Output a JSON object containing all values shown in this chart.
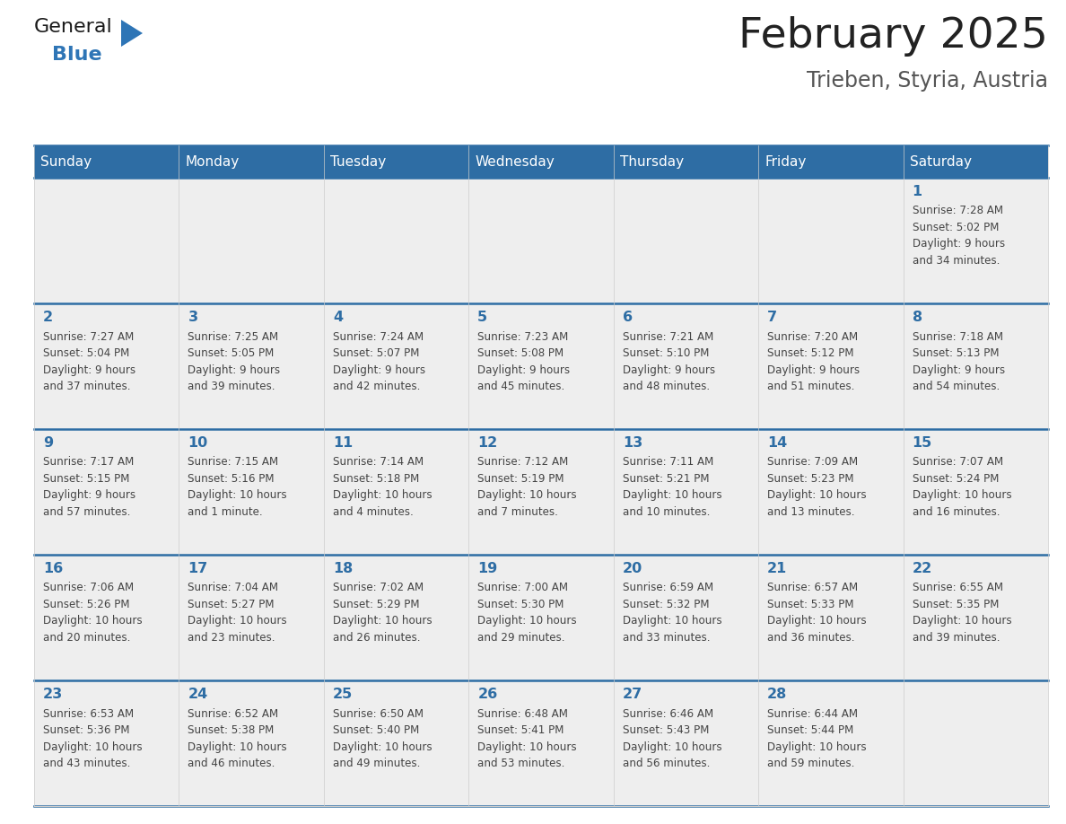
{
  "title": "February 2025",
  "subtitle": "Trieben, Styria, Austria",
  "days_of_week": [
    "Sunday",
    "Monday",
    "Tuesday",
    "Wednesday",
    "Thursday",
    "Friday",
    "Saturday"
  ],
  "header_bg": "#2e6da4",
  "header_text": "#ffffff",
  "cell_bg": "#eeeeee",
  "cell_bg_white": "#ffffff",
  "border_color": "#2e6da4",
  "day_number_color": "#2e6da4",
  "text_color": "#444444",
  "title_color": "#222222",
  "calendar_data": [
    [
      {
        "day": null,
        "info": ""
      },
      {
        "day": null,
        "info": ""
      },
      {
        "day": null,
        "info": ""
      },
      {
        "day": null,
        "info": ""
      },
      {
        "day": null,
        "info": ""
      },
      {
        "day": null,
        "info": ""
      },
      {
        "day": 1,
        "info": "Sunrise: 7:28 AM\nSunset: 5:02 PM\nDaylight: 9 hours\nand 34 minutes."
      }
    ],
    [
      {
        "day": 2,
        "info": "Sunrise: 7:27 AM\nSunset: 5:04 PM\nDaylight: 9 hours\nand 37 minutes."
      },
      {
        "day": 3,
        "info": "Sunrise: 7:25 AM\nSunset: 5:05 PM\nDaylight: 9 hours\nand 39 minutes."
      },
      {
        "day": 4,
        "info": "Sunrise: 7:24 AM\nSunset: 5:07 PM\nDaylight: 9 hours\nand 42 minutes."
      },
      {
        "day": 5,
        "info": "Sunrise: 7:23 AM\nSunset: 5:08 PM\nDaylight: 9 hours\nand 45 minutes."
      },
      {
        "day": 6,
        "info": "Sunrise: 7:21 AM\nSunset: 5:10 PM\nDaylight: 9 hours\nand 48 minutes."
      },
      {
        "day": 7,
        "info": "Sunrise: 7:20 AM\nSunset: 5:12 PM\nDaylight: 9 hours\nand 51 minutes."
      },
      {
        "day": 8,
        "info": "Sunrise: 7:18 AM\nSunset: 5:13 PM\nDaylight: 9 hours\nand 54 minutes."
      }
    ],
    [
      {
        "day": 9,
        "info": "Sunrise: 7:17 AM\nSunset: 5:15 PM\nDaylight: 9 hours\nand 57 minutes."
      },
      {
        "day": 10,
        "info": "Sunrise: 7:15 AM\nSunset: 5:16 PM\nDaylight: 10 hours\nand 1 minute."
      },
      {
        "day": 11,
        "info": "Sunrise: 7:14 AM\nSunset: 5:18 PM\nDaylight: 10 hours\nand 4 minutes."
      },
      {
        "day": 12,
        "info": "Sunrise: 7:12 AM\nSunset: 5:19 PM\nDaylight: 10 hours\nand 7 minutes."
      },
      {
        "day": 13,
        "info": "Sunrise: 7:11 AM\nSunset: 5:21 PM\nDaylight: 10 hours\nand 10 minutes."
      },
      {
        "day": 14,
        "info": "Sunrise: 7:09 AM\nSunset: 5:23 PM\nDaylight: 10 hours\nand 13 minutes."
      },
      {
        "day": 15,
        "info": "Sunrise: 7:07 AM\nSunset: 5:24 PM\nDaylight: 10 hours\nand 16 minutes."
      }
    ],
    [
      {
        "day": 16,
        "info": "Sunrise: 7:06 AM\nSunset: 5:26 PM\nDaylight: 10 hours\nand 20 minutes."
      },
      {
        "day": 17,
        "info": "Sunrise: 7:04 AM\nSunset: 5:27 PM\nDaylight: 10 hours\nand 23 minutes."
      },
      {
        "day": 18,
        "info": "Sunrise: 7:02 AM\nSunset: 5:29 PM\nDaylight: 10 hours\nand 26 minutes."
      },
      {
        "day": 19,
        "info": "Sunrise: 7:00 AM\nSunset: 5:30 PM\nDaylight: 10 hours\nand 29 minutes."
      },
      {
        "day": 20,
        "info": "Sunrise: 6:59 AM\nSunset: 5:32 PM\nDaylight: 10 hours\nand 33 minutes."
      },
      {
        "day": 21,
        "info": "Sunrise: 6:57 AM\nSunset: 5:33 PM\nDaylight: 10 hours\nand 36 minutes."
      },
      {
        "day": 22,
        "info": "Sunrise: 6:55 AM\nSunset: 5:35 PM\nDaylight: 10 hours\nand 39 minutes."
      }
    ],
    [
      {
        "day": 23,
        "info": "Sunrise: 6:53 AM\nSunset: 5:36 PM\nDaylight: 10 hours\nand 43 minutes."
      },
      {
        "day": 24,
        "info": "Sunrise: 6:52 AM\nSunset: 5:38 PM\nDaylight: 10 hours\nand 46 minutes."
      },
      {
        "day": 25,
        "info": "Sunrise: 6:50 AM\nSunset: 5:40 PM\nDaylight: 10 hours\nand 49 minutes."
      },
      {
        "day": 26,
        "info": "Sunrise: 6:48 AM\nSunset: 5:41 PM\nDaylight: 10 hours\nand 53 minutes."
      },
      {
        "day": 27,
        "info": "Sunrise: 6:46 AM\nSunset: 5:43 PM\nDaylight: 10 hours\nand 56 minutes."
      },
      {
        "day": 28,
        "info": "Sunrise: 6:44 AM\nSunset: 5:44 PM\nDaylight: 10 hours\nand 59 minutes."
      },
      {
        "day": null,
        "info": ""
      }
    ]
  ]
}
